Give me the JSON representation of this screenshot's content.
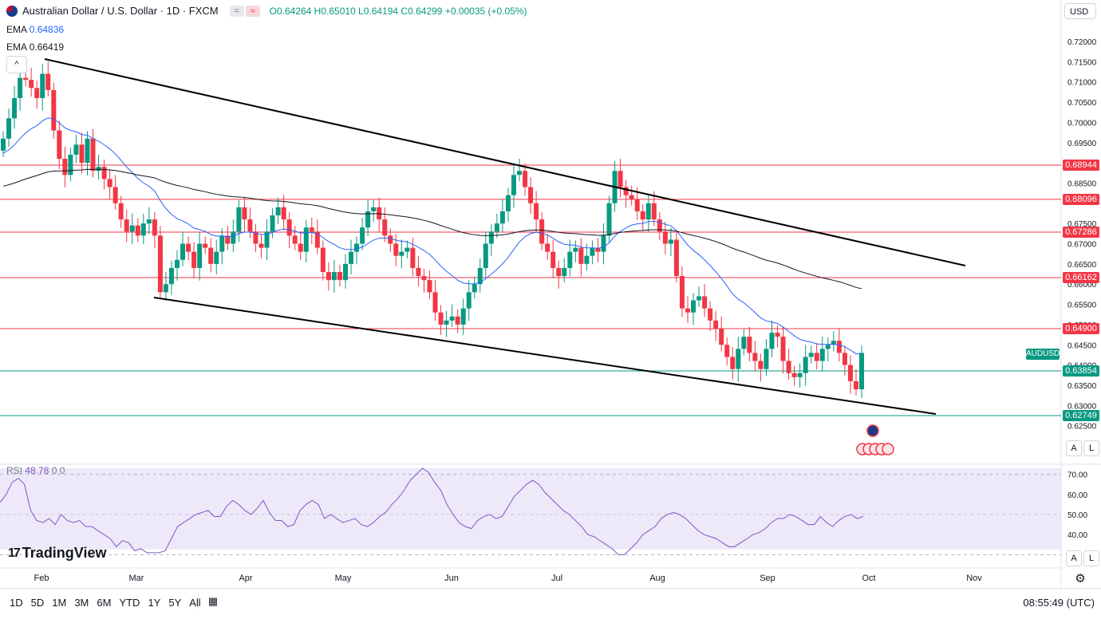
{
  "header": {
    "title": "Australian Dollar / U.S. Dollar · 1D · FXCM",
    "mode_a": "=",
    "mode_b": "≈",
    "ohlc": "O0.64264 H0.65010 L0.64194 C0.64299 +0.00035 (+0.05%)"
  },
  "indicators": {
    "ema1_label": "EMA",
    "ema1_value": "0.64836",
    "ema2_label": "EMA",
    "ema2_value": "0.66419",
    "rsi_label": "RSI",
    "rsi_value": "48.78",
    "rsi_extra": "0 0"
  },
  "controls": {
    "collapse": "^",
    "currency": "USD",
    "auto": "A",
    "log": "L",
    "symbol_badge": "AUDUSD"
  },
  "brand": {
    "name": "TradingView",
    "mark": "17"
  },
  "bottom": {
    "ranges": [
      "1D",
      "5D",
      "1M",
      "3M",
      "6M",
      "YTD",
      "1Y",
      "5Y",
      "All"
    ],
    "clock": "08:55:49 (UTC)"
  },
  "colors": {
    "up": "#089981",
    "down": "#f23645",
    "ema_fast": "#2962ff",
    "ema_slow": "#131722",
    "rsi": "#7e57c2",
    "resistance": "#f23645",
    "support": "#089981"
  },
  "chart_data": {
    "type": "candlestick",
    "title": "Australian Dollar / U.S. Dollar · 1D · FXCM",
    "price_axis": {
      "min": 0.62,
      "max": 0.72,
      "ticks": [
        "0.72000",
        "0.71500",
        "0.71000",
        "0.70500",
        "0.70000",
        "0.69500",
        "0.68500",
        "0.67500",
        "0.67000",
        "0.66500",
        "0.66000",
        "0.65500",
        "0.65000",
        "0.64500",
        "0.64000",
        "0.63500",
        "0.63000",
        "0.62500"
      ]
    },
    "time_axis": {
      "labels": [
        "Feb",
        "Mar",
        "Apr",
        "May",
        "Jun",
        "Jul",
        "Aug",
        "Sep",
        "Oct",
        "Nov"
      ]
    },
    "horizontal_levels": [
      {
        "value": 0.68944,
        "label": "0.68944",
        "kind": "resistance"
      },
      {
        "value": 0.68096,
        "label": "0.68096",
        "kind": "resistance"
      },
      {
        "value": 0.67286,
        "label": "0.67286",
        "kind": "resistance"
      },
      {
        "value": 0.66162,
        "label": "0.66162",
        "kind": "resistance"
      },
      {
        "value": 0.649,
        "label": "0.64900",
        "kind": "resistance"
      },
      {
        "value": 0.63854,
        "label": "0.63854",
        "kind": "support"
      },
      {
        "value": 0.62749,
        "label": "0.62749",
        "kind": "support"
      }
    ],
    "trendlines": [
      {
        "from": [
          0.0,
          0.7165
        ],
        "to": [
          1.0,
          0.665
        ]
      },
      {
        "from": [
          0.0,
          0.657
        ],
        "to": [
          1.0,
          0.6285
        ]
      }
    ],
    "closes": [
      0.696,
      0.701,
      0.706,
      0.711,
      0.7105,
      0.7085,
      0.706,
      0.712,
      0.708,
      0.698,
      0.691,
      0.687,
      0.692,
      0.6945,
      0.69,
      0.696,
      0.688,
      0.689,
      0.686,
      0.684,
      0.68,
      0.676,
      0.673,
      0.6745,
      0.672,
      0.675,
      0.676,
      0.672,
      0.658,
      0.66,
      0.664,
      0.666,
      0.67,
      0.668,
      0.664,
      0.67,
      0.669,
      0.665,
      0.668,
      0.672,
      0.67,
      0.673,
      0.679,
      0.676,
      0.673,
      0.67,
      0.669,
      0.673,
      0.677,
      0.679,
      0.676,
      0.672,
      0.67,
      0.668,
      0.674,
      0.673,
      0.669,
      0.663,
      0.661,
      0.663,
      0.661,
      0.665,
      0.668,
      0.67,
      0.674,
      0.678,
      0.679,
      0.676,
      0.672,
      0.67,
      0.667,
      0.668,
      0.669,
      0.664,
      0.662,
      0.661,
      0.658,
      0.653,
      0.65,
      0.651,
      0.652,
      0.65,
      0.654,
      0.658,
      0.66,
      0.664,
      0.67,
      0.673,
      0.675,
      0.678,
      0.682,
      0.687,
      0.688,
      0.684,
      0.68,
      0.676,
      0.67,
      0.668,
      0.664,
      0.662,
      0.664,
      0.668,
      0.669,
      0.665,
      0.667,
      0.669,
      0.668,
      0.672,
      0.68,
      0.688,
      0.684,
      0.682,
      0.681,
      0.678,
      0.676,
      0.68,
      0.676,
      0.673,
      0.67,
      0.671,
      0.662,
      0.654,
      0.653,
      0.656,
      0.657,
      0.654,
      0.651,
      0.649,
      0.645,
      0.642,
      0.639,
      0.644,
      0.647,
      0.643,
      0.641,
      0.639,
      0.644,
      0.648,
      0.647,
      0.641,
      0.638,
      0.637,
      0.638,
      0.642,
      0.643,
      0.641,
      0.644,
      0.645,
      0.646,
      0.643,
      0.64,
      0.636,
      0.634,
      0.643
    ],
    "ema_fast_end": 0.64836,
    "ema_slow_end": 0.66419,
    "last_close": 0.64299,
    "rsi": {
      "ticks": [
        "70.00",
        "60.00",
        "50.00",
        "40.00"
      ],
      "upper": 70,
      "lower": 30,
      "values": [
        56,
        60,
        66,
        68,
        65,
        52,
        47,
        46,
        48,
        45,
        50,
        47,
        46,
        47,
        44,
        44,
        42,
        40,
        38,
        34,
        37,
        36,
        32,
        33,
        31,
        31,
        31,
        32,
        38,
        44,
        46,
        48,
        50,
        51,
        52,
        49,
        49,
        54,
        57,
        55,
        52,
        50,
        53,
        57,
        51,
        47,
        47,
        44,
        45,
        52,
        55,
        57,
        55,
        48,
        50,
        48,
        46,
        47,
        48,
        45,
        44,
        46,
        49,
        51,
        55,
        58,
        62,
        67,
        70,
        73,
        71,
        66,
        62,
        55,
        50,
        46,
        44,
        43,
        47,
        49,
        50,
        48,
        49,
        54,
        59,
        62,
        65,
        67,
        65,
        61,
        58,
        55,
        52,
        50,
        47,
        44,
        40,
        39,
        37,
        35,
        33,
        30,
        30,
        33,
        36,
        40,
        42,
        44,
        48,
        50,
        51,
        50,
        48,
        45,
        42,
        40,
        39,
        38,
        36,
        34,
        34,
        36,
        38,
        40,
        41,
        43,
        46,
        48,
        48,
        50,
        49,
        47,
        45,
        45,
        49,
        46,
        44,
        47,
        49,
        50,
        48,
        49
      ]
    }
  }
}
